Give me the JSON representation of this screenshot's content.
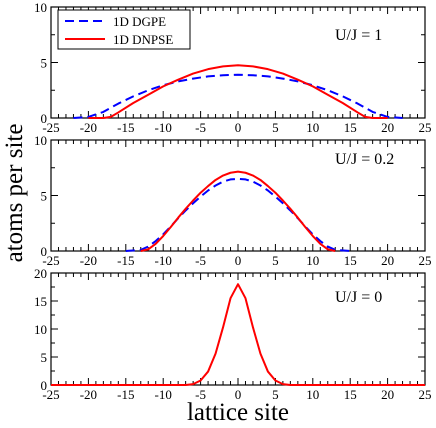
{
  "chart_data": {
    "type": "line",
    "xlabel": "lattice site",
    "ylabel": "atoms per site",
    "xlim": [
      -25,
      25
    ],
    "xticks": [
      -25,
      -20,
      -15,
      -10,
      -5,
      0,
      5,
      10,
      15,
      20,
      25
    ],
    "xtick_labels": [
      "-25",
      "-20",
      "-15",
      "-10",
      "-5",
      "0",
      "5",
      "10",
      "15",
      "20",
      "25"
    ],
    "legend": {
      "placement": "top-left",
      "entries": [
        {
          "name": "1D DGPE",
          "color": "#0000ff",
          "style": "dashed"
        },
        {
          "name": "1D DNPSE",
          "color": "#ff0000",
          "style": "solid"
        }
      ]
    },
    "panels": [
      {
        "label": "U/J = 1",
        "ylim": [
          0,
          10
        ],
        "yticks": [
          0,
          5,
          10
        ],
        "ytick_labels": [
          "0",
          "5",
          "10"
        ],
        "series": [
          {
            "name": "1D DGPE",
            "color": "#0000ff",
            "style": "dashed",
            "x": [
              -22,
              -20,
              -18,
              -16,
              -14,
              -12,
              -10,
              -8,
              -6,
              -4,
              -2,
              0,
              2,
              4,
              6,
              8,
              10,
              12,
              14,
              16,
              18,
              20,
              22
            ],
            "y": [
              0.0,
              0.1,
              0.55,
              1.3,
              1.95,
              2.5,
              2.95,
              3.3,
              3.55,
              3.75,
              3.85,
              3.9,
              3.85,
              3.75,
              3.55,
              3.3,
              2.95,
              2.5,
              1.95,
              1.3,
              0.55,
              0.1,
              0.0
            ]
          },
          {
            "name": "1D DNPSE",
            "color": "#ff0000",
            "style": "solid",
            "x": [
              -20,
              -18,
              -17,
              -16,
              -14,
              -12,
              -10,
              -8,
              -6,
              -4,
              -2,
              0,
              2,
              4,
              6,
              8,
              10,
              12,
              14,
              16,
              17,
              18,
              20
            ],
            "y": [
              0.0,
              0.0,
              0.1,
              0.5,
              1.35,
              2.1,
              2.85,
              3.45,
              4.0,
              4.4,
              4.65,
              4.75,
              4.65,
              4.4,
              4.0,
              3.45,
              2.85,
              2.1,
              1.35,
              0.5,
              0.1,
              0.0,
              0.0
            ]
          }
        ]
      },
      {
        "label": "U/J = 0.2",
        "ylim": [
          0,
          10
        ],
        "yticks": [
          0,
          5,
          10
        ],
        "ytick_labels": [
          "0",
          "5",
          "10"
        ],
        "series": [
          {
            "name": "1D DGPE",
            "color": "#0000ff",
            "style": "dashed",
            "x": [
              -15,
              -13,
              -12,
              -11,
              -10,
              -9,
              -8,
              -7,
              -6,
              -5,
              -4,
              -3,
              -2,
              -1,
              0,
              1,
              2,
              3,
              4,
              5,
              6,
              7,
              8,
              9,
              10,
              11,
              12,
              13,
              15
            ],
            "y": [
              0.0,
              0.1,
              0.4,
              0.9,
              1.5,
              2.2,
              2.95,
              3.65,
              4.3,
              4.9,
              5.45,
              5.9,
              6.25,
              6.45,
              6.5,
              6.45,
              6.25,
              5.9,
              5.45,
              4.9,
              4.3,
              3.65,
              2.95,
              2.2,
              1.5,
              0.9,
              0.4,
              0.1,
              0.0
            ]
          },
          {
            "name": "1D DNPSE",
            "color": "#ff0000",
            "style": "solid",
            "x": [
              -13,
              -12,
              -11,
              -10,
              -9,
              -8,
              -7,
              -6,
              -5,
              -4,
              -3,
              -2,
              -1,
              0,
              1,
              2,
              3,
              4,
              5,
              6,
              7,
              8,
              9,
              10,
              11,
              12,
              13
            ],
            "y": [
              0.0,
              0.15,
              0.65,
              1.35,
              2.15,
              3.0,
              3.8,
              4.55,
              5.25,
              5.85,
              6.4,
              6.8,
              7.05,
              7.15,
              7.05,
              6.8,
              6.4,
              5.85,
              5.25,
              4.55,
              3.8,
              3.0,
              2.15,
              1.35,
              0.65,
              0.15,
              0.0
            ]
          }
        ]
      },
      {
        "label": "U/J = 0",
        "ylim": [
          0,
          20
        ],
        "yticks": [
          0,
          5,
          10,
          15,
          20
        ],
        "ytick_labels": [
          "0",
          "5",
          "10",
          "15",
          "20"
        ],
        "series": [
          {
            "name": "1D DNPSE",
            "color": "#ff0000",
            "style": "solid",
            "x": [
              -25,
              -7,
              -6,
              -5,
              -4,
              -3,
              -2,
              -1,
              0,
              1,
              2,
              3,
              4,
              5,
              6,
              7,
              25
            ],
            "y": [
              0.0,
              0.0,
              0.15,
              0.8,
              2.4,
              5.6,
              10.3,
              15.5,
              18.0,
              15.5,
              10.3,
              5.6,
              2.4,
              0.8,
              0.15,
              0.0,
              0.0
            ]
          }
        ]
      }
    ]
  }
}
